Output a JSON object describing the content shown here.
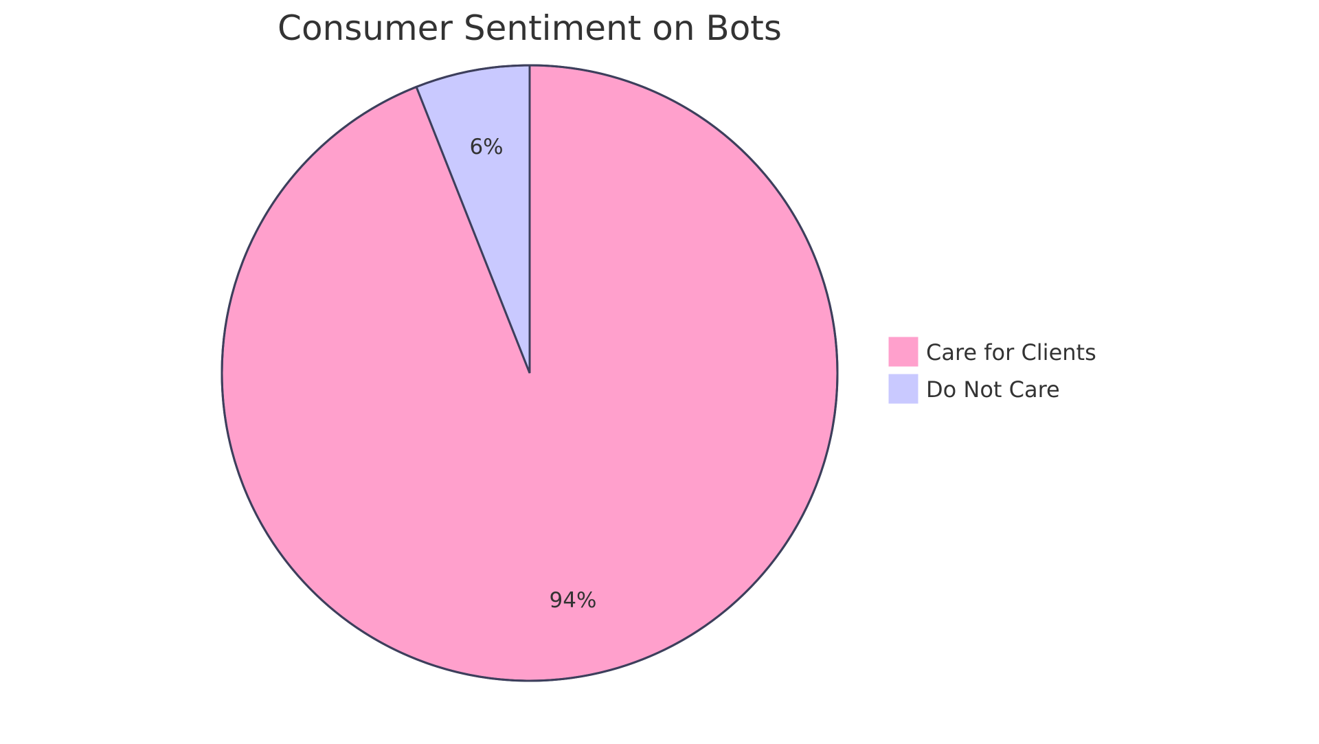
{
  "chart_data": {
    "type": "pie",
    "title": "Consumer Sentiment on Bots",
    "categories": [
      "Care for Clients",
      "Do Not Care"
    ],
    "values": [
      94,
      6
    ],
    "labels": [
      "94%",
      "6%"
    ],
    "colors": [
      "#FFA0CC",
      "#C9C9FF"
    ],
    "stroke_color": "#3D3F5C",
    "legend": {
      "position": "right",
      "entries": [
        {
          "label": "Care for Clients",
          "color": "#FFA0CC"
        },
        {
          "label": "Do Not Care",
          "color": "#C9C9FF"
        }
      ]
    }
  }
}
